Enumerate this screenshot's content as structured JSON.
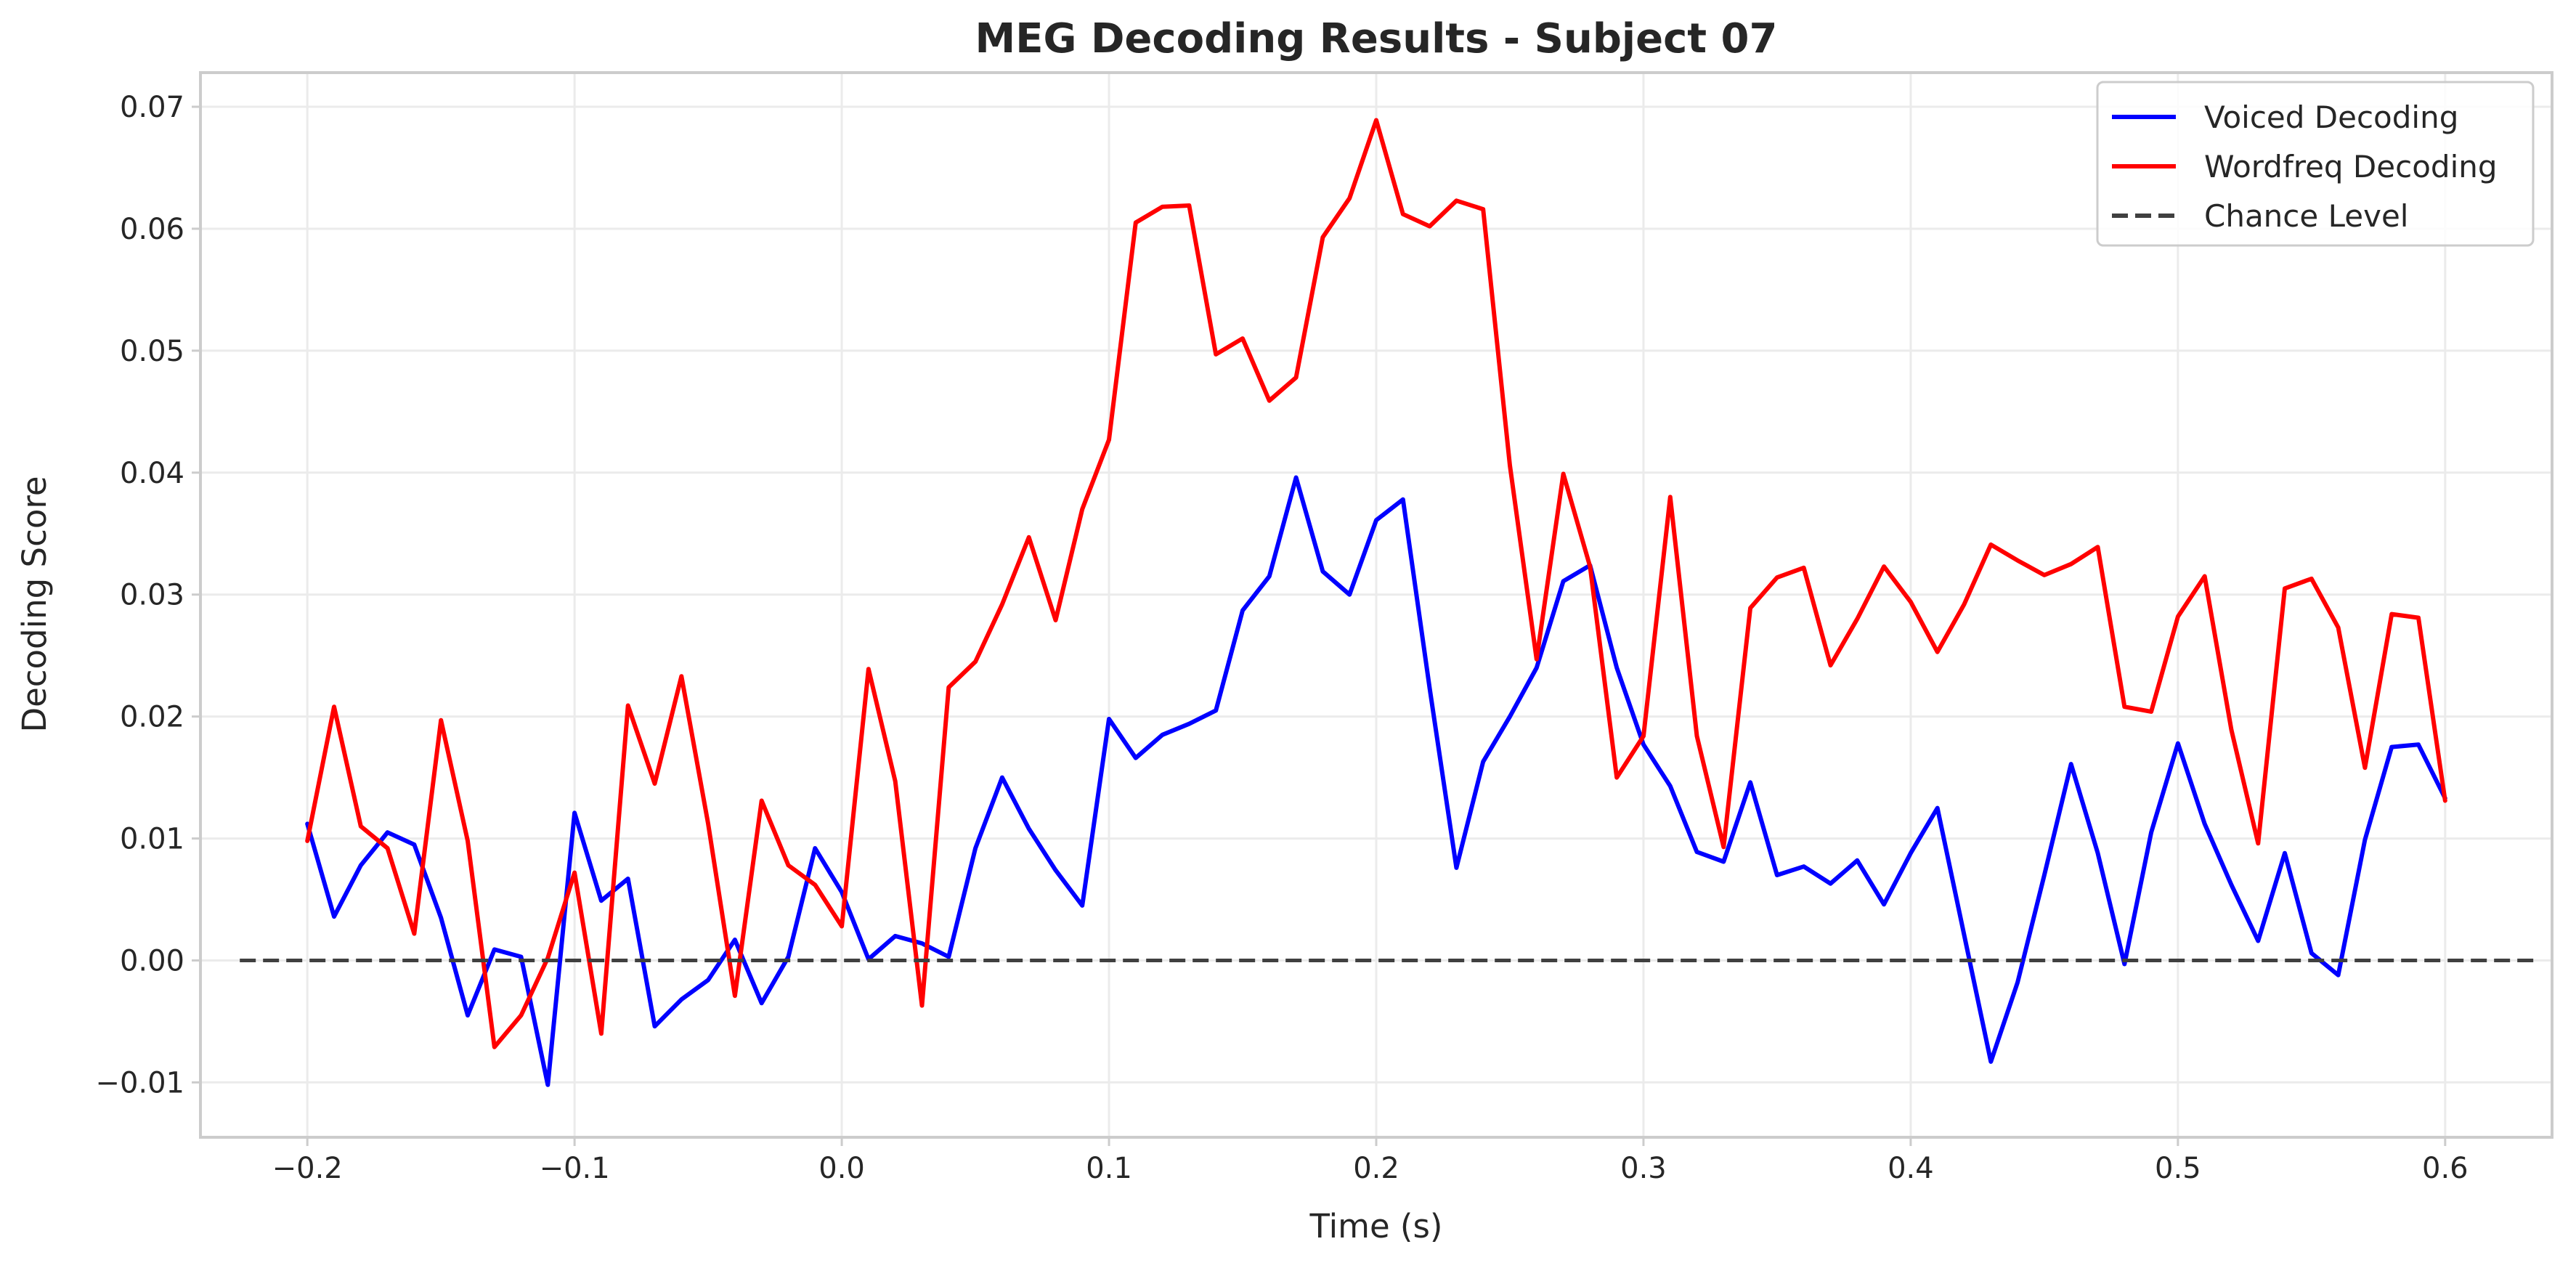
{
  "chart_data": {
    "type": "line",
    "title": "MEG Decoding Results - Subject 07",
    "xlabel": "Time (s)",
    "ylabel": "Decoding Score",
    "xlim": [
      -0.24,
      0.64
    ],
    "ylim": [
      -0.0145,
      0.0728
    ],
    "x_ticks": [
      -0.2,
      -0.1,
      0.0,
      0.1,
      0.2,
      0.3,
      0.4,
      0.5,
      0.6
    ],
    "x_tick_labels": [
      "−0.2",
      "−0.1",
      "0.0",
      "0.1",
      "0.2",
      "0.3",
      "0.4",
      "0.5",
      "0.6"
    ],
    "y_ticks": [
      -0.01,
      0.0,
      0.01,
      0.02,
      0.03,
      0.04,
      0.05,
      0.06,
      0.07
    ],
    "y_tick_labels": [
      "−0.01",
      "0.00",
      "0.01",
      "0.02",
      "0.03",
      "0.04",
      "0.05",
      "0.06",
      "0.07"
    ],
    "grid": true,
    "legend_position": "top-right",
    "x": [
      -0.2,
      -0.19,
      -0.18,
      -0.17,
      -0.16,
      -0.15,
      -0.14,
      -0.13,
      -0.12,
      -0.11,
      -0.1,
      -0.09,
      -0.08,
      -0.07,
      -0.06,
      -0.05,
      -0.04,
      -0.03,
      -0.02,
      -0.01,
      0.0,
      0.01,
      0.02,
      0.03,
      0.04,
      0.05,
      0.06,
      0.07,
      0.08,
      0.09,
      0.1,
      0.11,
      0.12,
      0.13,
      0.14,
      0.15,
      0.16,
      0.17,
      0.18,
      0.19,
      0.2,
      0.21,
      0.22,
      0.23,
      0.24,
      0.25,
      0.26,
      0.27,
      0.28,
      0.29,
      0.3,
      0.31,
      0.32,
      0.33,
      0.34,
      0.35,
      0.36,
      0.37,
      0.38,
      0.39,
      0.4,
      0.41,
      0.42,
      0.43,
      0.44,
      0.45,
      0.46,
      0.47,
      0.48,
      0.49,
      0.5,
      0.51,
      0.52,
      0.53,
      0.54,
      0.55,
      0.56,
      0.57,
      0.58,
      0.59,
      0.6
    ],
    "series": [
      {
        "name": "Voiced Decoding",
        "color": "#0000ff",
        "values": [
          0.0112,
          0.0036,
          0.0078,
          0.0105,
          0.0095,
          0.0035,
          -0.0045,
          0.0009,
          0.0003,
          -0.0102,
          0.0121,
          0.0049,
          0.0067,
          -0.0054,
          -0.0032,
          -0.0016,
          0.0017,
          -0.0035,
          0.0003,
          0.0092,
          0.0056,
          0.0001,
          0.002,
          0.0014,
          0.0003,
          0.0092,
          0.015,
          0.0108,
          0.0074,
          0.0045,
          0.0198,
          0.0166,
          0.0185,
          0.0194,
          0.0205,
          0.0287,
          0.0315,
          0.0396,
          0.0319,
          0.03,
          0.0361,
          0.0378,
          0.0223,
          0.0076,
          0.0163,
          0.02,
          0.024,
          0.0311,
          0.0324,
          0.024,
          0.0177,
          0.0143,
          0.0089,
          0.0081,
          0.0146,
          0.007,
          0.0077,
          0.0063,
          0.0082,
          0.0046,
          0.0088,
          0.0125,
          0.0021,
          -0.0083,
          -0.0018,
          0.007,
          0.0161,
          0.0088,
          -0.0003,
          0.0105,
          0.0178,
          0.0112,
          0.0062,
          0.0016,
          0.0088,
          0.0006,
          -0.0012,
          0.0099,
          0.0175,
          0.0177,
          0.0133
        ]
      },
      {
        "name": "Wordfreq Decoding",
        "color": "#ff0000",
        "values": [
          0.0098,
          0.0208,
          0.011,
          0.0092,
          0.0022,
          0.0197,
          0.0098,
          -0.0071,
          -0.0045,
          0.0002,
          0.0072,
          -0.006,
          0.0209,
          0.0145,
          0.0233,
          0.0112,
          -0.0029,
          0.0131,
          0.0078,
          0.0062,
          0.0028,
          0.0239,
          0.0147,
          -0.0037,
          0.0224,
          0.0245,
          0.0292,
          0.0347,
          0.0279,
          0.037,
          0.0427,
          0.0605,
          0.0618,
          0.0619,
          0.0497,
          0.051,
          0.0459,
          0.0478,
          0.0593,
          0.0625,
          0.0689,
          0.0612,
          0.0602,
          0.0623,
          0.0616,
          0.0406,
          0.0247,
          0.0399,
          0.0323,
          0.015,
          0.0184,
          0.038,
          0.0184,
          0.0093,
          0.0289,
          0.0314,
          0.0322,
          0.0242,
          0.028,
          0.0323,
          0.0294,
          0.0253,
          0.0292,
          0.0341,
          0.0328,
          0.0316,
          0.0325,
          0.0339,
          0.0208,
          0.0204,
          0.0282,
          0.0315,
          0.0189,
          0.0096,
          0.0305,
          0.0313,
          0.0273,
          0.0158,
          0.0284,
          0.0281,
          0.0131
        ]
      }
    ],
    "reference_line": {
      "name": "Chance Level",
      "y": 0.0,
      "color": "#404040",
      "style": "dashed"
    },
    "legend": [
      {
        "label": "Voiced Decoding",
        "color": "#0000ff",
        "style": "solid"
      },
      {
        "label": "Wordfreq Decoding",
        "color": "#ff0000",
        "style": "solid"
      },
      {
        "label": "Chance Level",
        "color": "#404040",
        "style": "dashed"
      }
    ]
  }
}
